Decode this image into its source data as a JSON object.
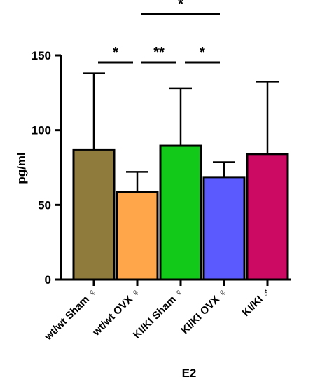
{
  "chart_data": {
    "type": "bar",
    "xlabel": "E2",
    "ylabel": "pg/ml",
    "ylim": [
      0,
      150
    ],
    "yticks": [
      0,
      50,
      100,
      150
    ],
    "categories": [
      "wt/wt Sham ♀",
      "wt/wt OVX ♀",
      "KI/KI Sham ♀",
      "KI/KI OVX ♀",
      "KI/KI ♂"
    ],
    "values": [
      87,
      58.5,
      89.5,
      68.5,
      84
    ],
    "error_upper": [
      138,
      72,
      128,
      78.5,
      132.5
    ],
    "colors": [
      "#8f7b3c",
      "#ffa64a",
      "#12c91a",
      "#5a5aff",
      "#cc0a63"
    ],
    "significance": [
      {
        "from": 0,
        "to": 1,
        "label": "*",
        "level": 1
      },
      {
        "from": 1,
        "to": 2,
        "label": "**",
        "level": 1
      },
      {
        "from": 2,
        "to": 3,
        "label": "*",
        "level": 1
      },
      {
        "from": 1,
        "to": 3,
        "label": "*",
        "level": 2
      }
    ]
  }
}
